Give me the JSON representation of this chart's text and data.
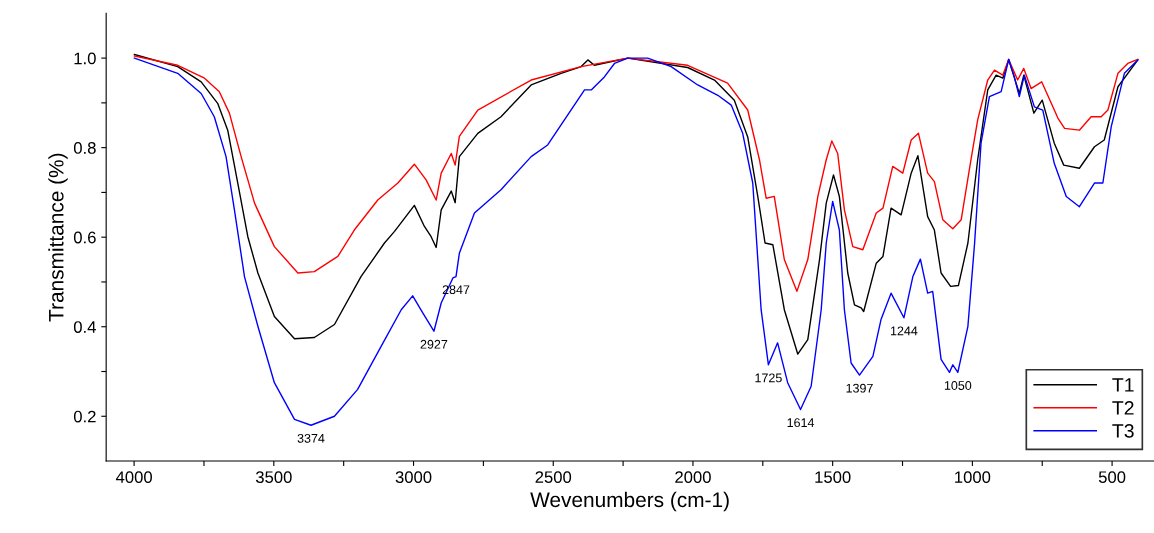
{
  "chart_data": {
    "type": "line",
    "xlabel": "Wevenumbers (cm-1)",
    "ylabel": "Transmittance (%)",
    "xlim": [
      4100,
      350
    ],
    "ylim": [
      0.1,
      1.1
    ],
    "xticks": [
      4000,
      {
        "value": 3750,
        "label": null
      },
      3500,
      {
        "value": 3250,
        "label": null
      },
      3000,
      {
        "value": 2750,
        "label": null
      },
      2500,
      {
        "value": 2250,
        "label": null
      },
      2000,
      {
        "value": 1750,
        "label": null
      },
      1500,
      {
        "value": 1250,
        "label": null
      },
      1000,
      {
        "value": 750,
        "label": null
      },
      500
    ],
    "yticks": [
      0.2,
      {
        "value": 0.3,
        "label": null
      },
      0.4,
      {
        "value": 0.5,
        "label": null
      },
      0.6,
      {
        "value": 0.7,
        "label": null
      },
      0.8,
      {
        "value": 0.9,
        "label": null
      },
      {
        "value": 1.0,
        "label": "1.0"
      }
    ],
    "grid": false,
    "legend": "bottom right",
    "marker": "none",
    "line_style": "solid",
    "series": [
      {
        "name": "T1",
        "color": "#000000",
        "x": [
          3999,
          3844,
          3760,
          3701,
          3665,
          3629,
          3593,
          3557,
          3498,
          3426,
          3355,
          3283,
          3188,
          3104,
          3068,
          2997,
          2961,
          2937,
          2919,
          2901,
          2865,
          2851,
          2836,
          2770,
          2687,
          2579,
          2472,
          2400,
          2376,
          2353,
          2233,
          2019,
          1923,
          1852,
          1804,
          1768,
          1742,
          1714,
          1673,
          1625,
          1589,
          1547,
          1523,
          1497,
          1476,
          1446,
          1422,
          1398,
          1389,
          1344,
          1320,
          1291,
          1255,
          1219,
          1195,
          1160,
          1136,
          1112,
          1078,
          1050,
          1016,
          981,
          945,
          915,
          891,
          870,
          832,
          816,
          780,
          750,
          707,
          673,
          617,
          563,
          528,
          479,
          408
        ],
        "values": [
          1.008,
          0.981,
          0.947,
          0.899,
          0.839,
          0.721,
          0.601,
          0.52,
          0.423,
          0.373,
          0.376,
          0.405,
          0.512,
          0.587,
          0.613,
          0.671,
          0.624,
          0.601,
          0.577,
          0.661,
          0.703,
          0.677,
          0.78,
          0.832,
          0.869,
          0.94,
          0.966,
          0.981,
          0.996,
          0.984,
          1.0,
          0.979,
          0.951,
          0.906,
          0.824,
          0.691,
          0.587,
          0.583,
          0.438,
          0.339,
          0.371,
          0.55,
          0.676,
          0.739,
          0.691,
          0.52,
          0.449,
          0.442,
          0.434,
          0.542,
          0.557,
          0.665,
          0.65,
          0.743,
          0.782,
          0.646,
          0.616,
          0.52,
          0.49,
          0.492,
          0.587,
          0.773,
          0.929,
          0.962,
          0.955,
          0.997,
          0.921,
          0.962,
          0.877,
          0.906,
          0.81,
          0.761,
          0.754,
          0.802,
          0.817,
          0.936,
          0.996
        ]
      },
      {
        "name": "T2",
        "color": "#ff0000",
        "x": [
          3999,
          3844,
          3748,
          3695,
          3659,
          3617,
          3569,
          3498,
          3414,
          3355,
          3271,
          3212,
          3128,
          3056,
          2997,
          2955,
          2919,
          2901,
          2865,
          2851,
          2836,
          2770,
          2579,
          2400,
          2233,
          2019,
          1876,
          1804,
          1762,
          1738,
          1709,
          1673,
          1628,
          1589,
          1553,
          1523,
          1503,
          1482,
          1458,
          1428,
          1392,
          1344,
          1320,
          1285,
          1249,
          1219,
          1193,
          1160,
          1136,
          1106,
          1070,
          1040,
          1005,
          981,
          945,
          921,
          891,
          870,
          838,
          816,
          790,
          752,
          694,
          670,
          617,
          575,
          539,
          515,
          479,
          444,
          408
        ],
        "values": [
          1.005,
          0.984,
          0.955,
          0.925,
          0.877,
          0.78,
          0.676,
          0.579,
          0.52,
          0.523,
          0.557,
          0.616,
          0.683,
          0.721,
          0.763,
          0.728,
          0.683,
          0.743,
          0.787,
          0.761,
          0.825,
          0.884,
          0.951,
          0.981,
          1.0,
          0.984,
          0.944,
          0.884,
          0.773,
          0.687,
          0.691,
          0.55,
          0.479,
          0.55,
          0.691,
          0.773,
          0.815,
          0.787,
          0.661,
          0.579,
          0.572,
          0.654,
          0.665,
          0.758,
          0.743,
          0.817,
          0.832,
          0.743,
          0.724,
          0.639,
          0.619,
          0.639,
          0.773,
          0.862,
          0.951,
          0.973,
          0.962,
          0.997,
          0.951,
          0.977,
          0.932,
          0.947,
          0.866,
          0.843,
          0.839,
          0.869,
          0.869,
          0.884,
          0.966,
          0.988,
          0.997
        ]
      },
      {
        "name": "T3",
        "color": "#0000ff",
        "x": [
          3999,
          3844,
          3760,
          3713,
          3671,
          3641,
          3605,
          3557,
          3498,
          3426,
          3367,
          3283,
          3200,
          3116,
          3044,
          3003,
          2967,
          2927,
          2901,
          2859,
          2848,
          2836,
          2782,
          2687,
          2579,
          2520,
          2472,
          2388,
          2364,
          2317,
          2281,
          2233,
          2162,
          2078,
          1983,
          1911,
          1863,
          1822,
          1786,
          1756,
          1730,
          1697,
          1661,
          1615,
          1577,
          1541,
          1523,
          1500,
          1476,
          1458,
          1434,
          1404,
          1356,
          1327,
          1291,
          1245,
          1213,
          1186,
          1160,
          1142,
          1112,
          1082,
          1070,
          1052,
          1016,
          992,
          969,
          939,
          897,
          870,
          850,
          832,
          814,
          778,
          748,
          707,
          664,
          617,
          563,
          533,
          503,
          456,
          408
        ],
        "values": [
          1.0,
          0.966,
          0.921,
          0.869,
          0.78,
          0.661,
          0.512,
          0.401,
          0.275,
          0.193,
          0.18,
          0.2,
          0.26,
          0.356,
          0.438,
          0.469,
          0.431,
          0.39,
          0.453,
          0.509,
          0.512,
          0.564,
          0.654,
          0.706,
          0.78,
          0.806,
          0.851,
          0.929,
          0.929,
          0.958,
          0.988,
          1.0,
          1.0,
          0.981,
          0.94,
          0.917,
          0.895,
          0.832,
          0.721,
          0.438,
          0.315,
          0.364,
          0.275,
          0.215,
          0.267,
          0.438,
          0.587,
          0.68,
          0.616,
          0.438,
          0.319,
          0.292,
          0.334,
          0.416,
          0.475,
          0.42,
          0.512,
          0.551,
          0.475,
          0.479,
          0.327,
          0.298,
          0.315,
          0.298,
          0.401,
          0.587,
          0.81,
          0.914,
          0.925,
          0.997,
          0.958,
          0.914,
          0.962,
          0.891,
          0.884,
          0.765,
          0.691,
          0.668,
          0.721,
          0.721,
          0.847,
          0.966,
          0.996
        ]
      }
    ],
    "annotations": [
      {
        "text": "3374",
        "x": 3367,
        "y": 0.18
      },
      {
        "text": "2927",
        "x": 2927,
        "y": 0.39
      },
      {
        "text": "2847",
        "x": 2848,
        "y": 0.512
      },
      {
        "text": "1725",
        "x": 1730,
        "y": 0.315
      },
      {
        "text": "1614",
        "x": 1615,
        "y": 0.215
      },
      {
        "text": "1397",
        "x": 1404,
        "y": 0.292
      },
      {
        "text": "1244",
        "x": 1245,
        "y": 0.42
      },
      {
        "text": "1050",
        "x": 1052,
        "y": 0.298
      }
    ]
  }
}
